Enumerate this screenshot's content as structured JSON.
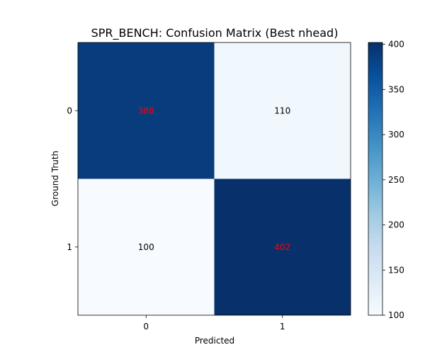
{
  "chart_data": {
    "type": "heatmap",
    "title": "SPR_BENCH: Confusion Matrix (Best nhead)",
    "xlabel": "Predicted",
    "ylabel": "Ground Truth",
    "x_categories": [
      "0",
      "1"
    ],
    "y_categories": [
      "0",
      "1"
    ],
    "matrix": [
      [
        388,
        110
      ],
      [
        100,
        402
      ]
    ],
    "cell_text_colors": [
      [
        "#ff0000",
        "#000000"
      ],
      [
        "#000000",
        "#ff0000"
      ]
    ],
    "colormap": "Blues",
    "colorbar": {
      "range": [
        100,
        402
      ],
      "ticks": [
        100,
        150,
        200,
        250,
        300,
        350,
        400
      ]
    },
    "grid": false
  }
}
